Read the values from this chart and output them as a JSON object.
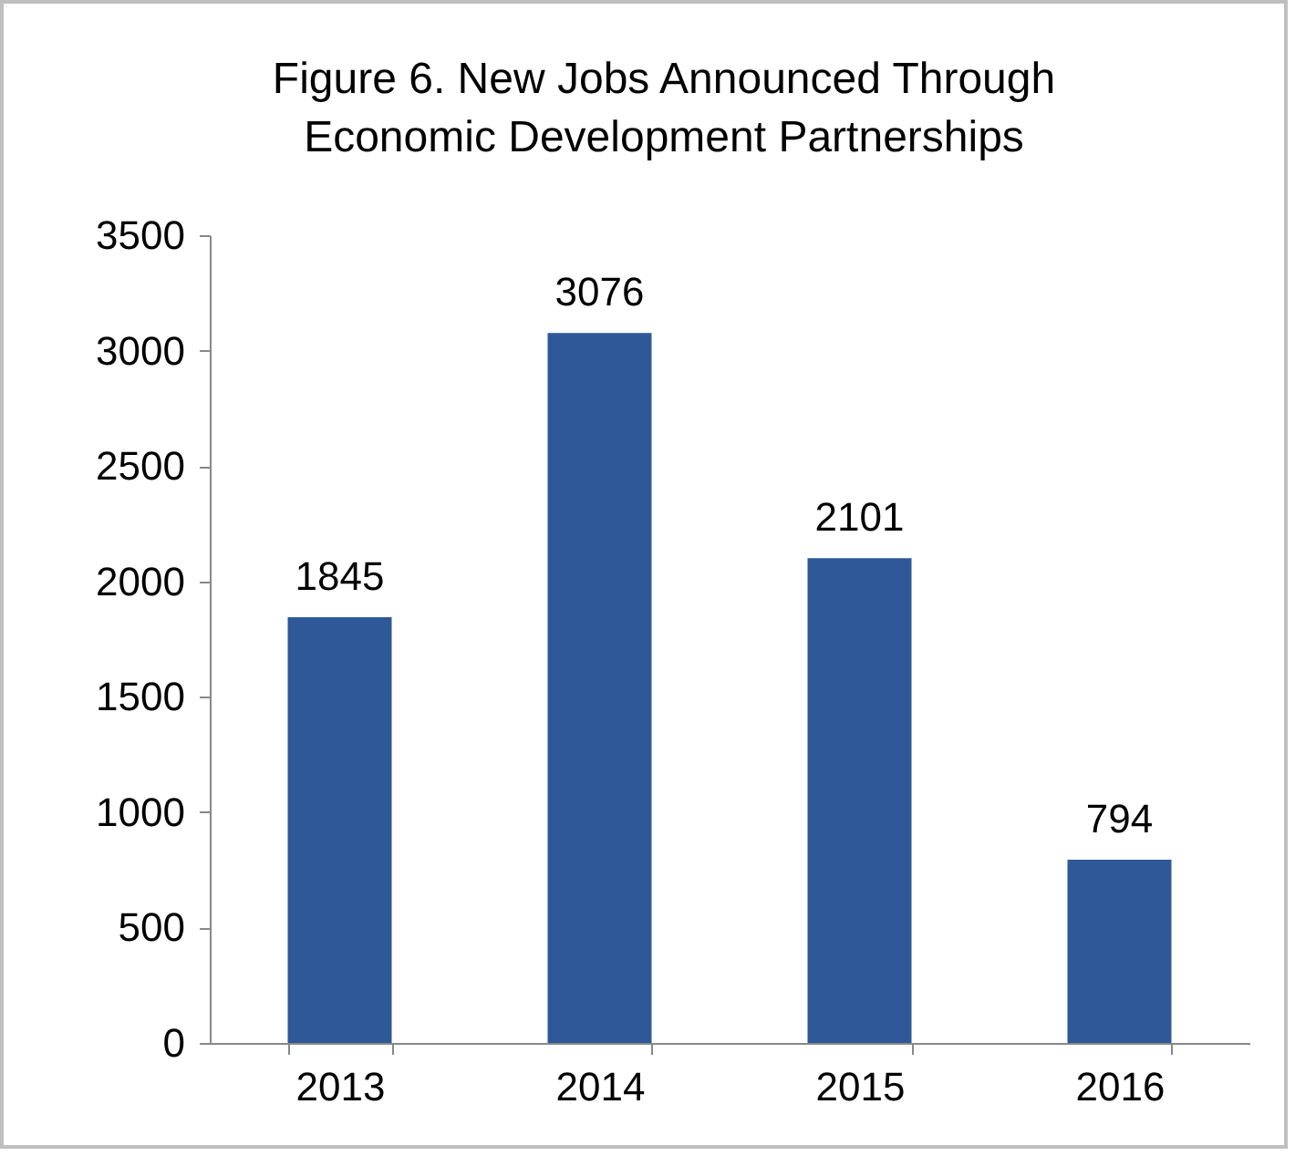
{
  "chart_data": {
    "type": "bar",
    "title": "Figure 6. New Jobs Announced Through Economic Development Partnerships",
    "categories": [
      "2013",
      "2014",
      "2015",
      "2016"
    ],
    "values": [
      1845,
      3076,
      2101,
      794
    ],
    "color": "#2e5898",
    "ylim": [
      0,
      3500
    ],
    "yticks": [
      0,
      500,
      1000,
      1500,
      2000,
      2500,
      3000,
      3500
    ],
    "data_labels": true
  }
}
